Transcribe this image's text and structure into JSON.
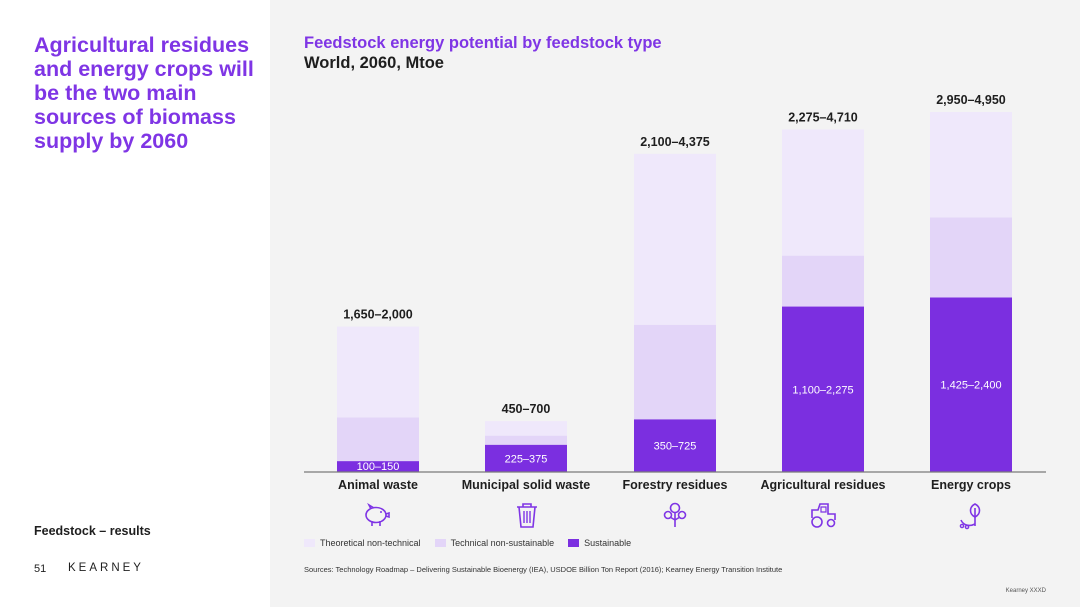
{
  "headline": "Agricultural residues and energy crops will be the two main sources of biomass supply by 2060",
  "section_label": "Feedstock – results",
  "page_number": "51",
  "logo": "KEARNEY",
  "sources": "Sources: Technology Roadmap – Delivering Sustainable Bioenergy (IEA), USDOE Billion Ton Report (2016); Kearney Energy Transition Institute",
  "copyright": "Kearney XXXD",
  "colors": {
    "accent": "#7f35e5",
    "sustainable": "#7b2fe0",
    "technical_non_sustainable": "#e3d5f8",
    "theoretical_non_technical": "#efe8fb"
  },
  "icons": [
    "piggy-bank-icon",
    "trash-bin-icon",
    "tree-icon",
    "tractor-icon",
    "sprout-icon"
  ],
  "chart_data": {
    "type": "bar",
    "stacked": true,
    "title": "Feedstock energy potential by feedstock type",
    "subtitle": "World, 2060, Mtoe",
    "ylim": [
      0,
      4950
    ],
    "grid": false,
    "legend_position": "bottom-left",
    "categories": [
      "Animal waste",
      "Municipal solid waste",
      "Forestry residues",
      "Agricultural residues",
      "Energy crops"
    ],
    "total_labels": [
      "1,650–2,000",
      "450–700",
      "2,100–4,375",
      "2,275–4,710",
      "2,950–4,950"
    ],
    "sustainable_labels": [
      "100–150",
      "225–375",
      "350–725",
      "1,100–2,275",
      "1,425–2,400"
    ],
    "series": [
      {
        "name": "Sustainable",
        "values": [
          150,
          375,
          725,
          2275,
          2400
        ]
      },
      {
        "name": "Technical non-sustainable",
        "values": [
          600,
          125,
          1300,
          700,
          1100
        ]
      },
      {
        "name": "Theoretical non-technical",
        "values": [
          1250,
          200,
          2350,
          1735,
          1450
        ]
      }
    ],
    "legend": [
      "Theoretical non-technical",
      "Technical non-sustainable",
      "Sustainable"
    ]
  }
}
